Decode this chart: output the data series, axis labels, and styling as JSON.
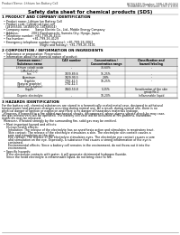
{
  "header_left": "Product Name: Lithium Ion Battery Cell",
  "header_right_line1": "BDS&SDS Number: SBR-LIB-00010",
  "header_right_line2": "Established / Revision: Dec.1.2016",
  "title": "Safety data sheet for chemical products (SDS)",
  "section1_title": "1 PRODUCT AND COMPANY IDENTIFICATION",
  "section1_lines": [
    "  • Product name: Lithium Ion Battery Cell",
    "  • Product code: Cylindrical-type cell",
    "    (18166500, 18168500, 18168504)",
    "  • Company name:      Sanyo Electric Co., Ltd., Mobile Energy Company",
    "  • Address:              2001 Kamikamachi, Sumoto-City, Hyogo, Japan",
    "  • Telephone number: +81-799-26-4111",
    "  • Fax number:         +81-799-26-4129",
    "  • Emergency telephone number (daytime): +81-799-26-3062",
    "                                          (Night and holiday): +81-799-26-3101"
  ],
  "section2_title": "2 COMPOSITION / INFORMATION ON INGREDIENTS",
  "section2_intro": "  • Substance or preparation: Preparation",
  "section2_sub": "  • Information about the chemical nature of product:",
  "table_col_labels": [
    "Common name /\nSubstance name",
    "CAS number",
    "Concentration /\nConcentration range",
    "Classification and\nhazard labeling"
  ],
  "table_rows": [
    [
      "Lithium cobalt oxide\n(LiMnCoO₂[x])",
      "-",
      "30-60%",
      "-"
    ],
    [
      "Iron",
      "7439-89-6",
      "15-25%",
      "-"
    ],
    [
      "Aluminum",
      "7429-90-5",
      "2-8%",
      "-"
    ],
    [
      "Graphite\n(Natural graphite)\n(Artificial graphite)",
      "7782-42-5\n7782-42-5",
      "10-25%",
      "-"
    ],
    [
      "Copper",
      "7440-50-8",
      "5-15%",
      "Sensitization of the skin\ngroup No.2"
    ],
    [
      "Organic electrolyte",
      "-",
      "10-20%",
      "Inflammable liquid"
    ]
  ],
  "section3_title": "3 HAZARDS IDENTIFICATION",
  "section3_text": [
    "For the battery cell, chemical substances are stored in a hermetically sealed metal case, designed to withstand",
    "temperatures and pressure-changes occurring during normal use. As a result, during normal use, there is no",
    "physical danger of ignition or explosion and there is no danger of hazardous materials leakage.",
    "  However, if exposed to a fire added mechanical shocks, decomposed, where alarms vibrate shock-by may case,",
    "the gas release vent will be operated. The battery cell case will be breached at fire-patterns, hazardous",
    "materials may be released.",
    "  Moreover, if heated strongly by the surrounding fire, solid gas may be emitted.",
    "",
    "  • Most important hazard and effects:",
    "     Human health effects:",
    "       Inhalation: The release of the electrolyte has an anesthesia action and stimulates in respiratory tract.",
    "       Skin contact: The release of the electrolyte stimulates a skin. The electrolyte skin contact causes a",
    "       sore and stimulation on the skin.",
    "       Eye contact: The release of the electrolyte stimulates eyes. The electrolyte eye contact causes a sore",
    "       and stimulation on the eye. Especially, a substance that causes a strong inflammation of the eye is",
    "       contained.",
    "       Environmental effects: Since a battery cell remains in the environment, do not throw out it into the",
    "       environment.",
    "",
    "  • Specific hazards:",
    "     If the electrolyte contacts with water, it will generate detrimental hydrogen fluoride.",
    "     Since the head electrolyte is inflammable liquid, do not bring close to fire."
  ],
  "footer_line": true,
  "bg_color": "#ffffff",
  "text_color": "#000000",
  "table_header_bg": "#d8d8d8",
  "table_alt_bg": "#f0f0f0"
}
